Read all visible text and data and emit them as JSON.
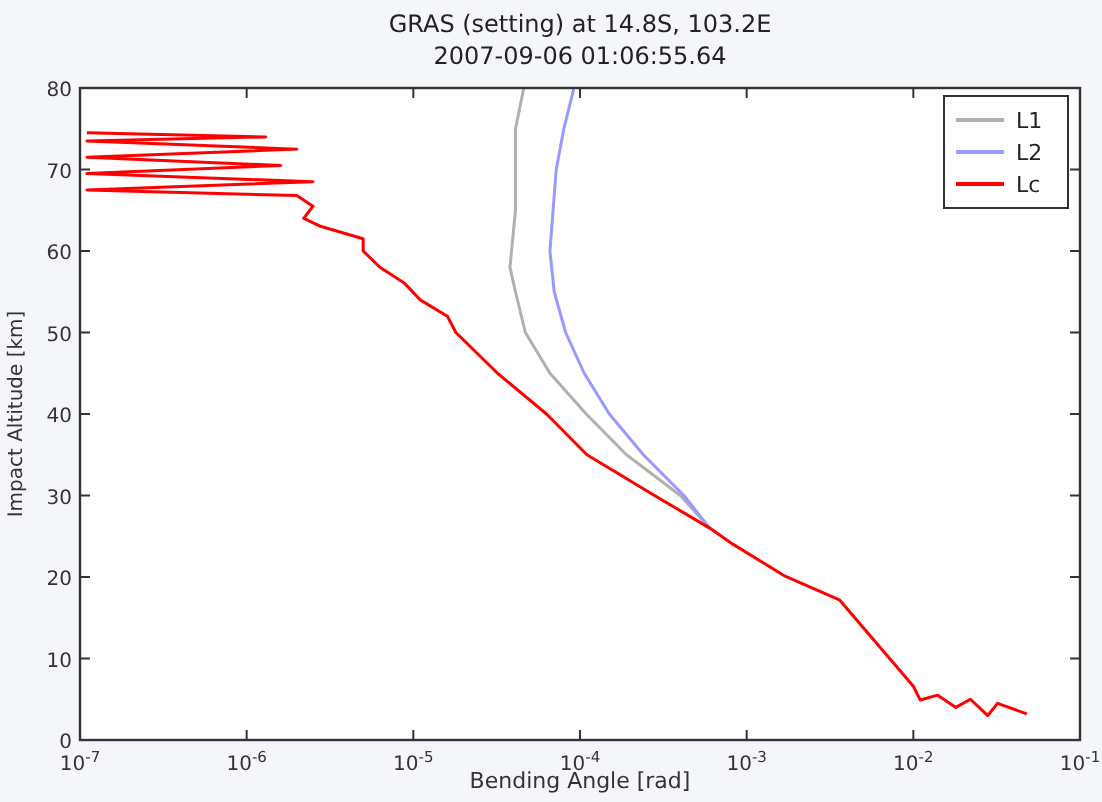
{
  "chart_data": {
    "type": "line",
    "title": "GRAS (setting) at 14.8S, 103.2E",
    "subtitle": "2007-09-06 01:06:55.64",
    "xlabel": "Bending Angle [rad]",
    "ylabel": "Impact Altitude [km]",
    "log": "x",
    "xlim": [
      1e-07,
      0.1
    ],
    "ylim": [
      0,
      80
    ],
    "xticks": [
      {
        "value": 1e-07,
        "label": "10$^{-7}$"
      },
      {
        "value": 1e-06,
        "label": "10$^{-6}$"
      },
      {
        "value": 1e-05,
        "label": "10$^{-5}$"
      },
      {
        "value": 0.0001,
        "label": "10$^{-4}$"
      },
      {
        "value": 0.001,
        "label": "10$^{-3}$"
      },
      {
        "value": 0.01,
        "label": "10$^{-2}$"
      },
      {
        "value": 0.1,
        "label": "10$^{-1}$"
      }
    ],
    "yticks": [
      0,
      10,
      20,
      30,
      40,
      50,
      60,
      70,
      80
    ],
    "grid": false,
    "legend": "top right",
    "marker": "none",
    "line_style": "solid",
    "series": [
      {
        "name": "L1",
        "color": "#b0b0b0",
        "x": [
          4.6e-05,
          4.1e-05,
          4.1e-05,
          3.8e-05,
          4.1e-05,
          4.7e-05,
          6.6e-05,
          0.000109,
          0.00019,
          0.0004,
          0.0006
        ],
        "values": [
          80,
          75,
          65,
          58,
          55,
          50,
          45,
          40,
          35,
          30,
          26
        ]
      },
      {
        "name": "L2",
        "color": "#9999ff",
        "x": [
          9.2e-05,
          8e-05,
          7.2e-05,
          6.6e-05,
          7e-05,
          8.2e-05,
          0.000106,
          0.00015,
          0.00024,
          0.00042,
          0.0006
        ],
        "values": [
          80,
          75,
          70,
          60,
          55,
          50,
          45,
          40,
          35,
          30,
          26
        ]
      },
      {
        "name": "Lc",
        "color": "#ff0000",
        "x": [
          1.1e-07,
          1.3e-06,
          1.1e-07,
          2e-06,
          1.1e-07,
          1.6e-06,
          1.1e-07,
          2.5e-06,
          1.1e-07,
          2e-06,
          2.5e-06,
          2.2e-06,
          2.8e-06,
          5e-06,
          5e-06,
          6.3e-06,
          8.9e-06,
          1.1e-05,
          1.6e-05,
          1.8e-05,
          3.2e-05,
          6.3e-05,
          0.00011,
          0.00028,
          0.0006,
          0.00083,
          0.0017,
          0.0036,
          0.01,
          0.011,
          0.014,
          0.018,
          0.022,
          0.028,
          0.032,
          0.048
        ],
        "values": [
          74.5,
          74,
          73.5,
          72.5,
          71.5,
          70.5,
          69.5,
          68.5,
          67.5,
          66.8,
          65.5,
          64,
          63,
          61.5,
          60,
          58,
          56,
          54,
          52,
          50,
          45,
          40,
          35,
          30,
          26,
          24,
          20.1,
          17.2,
          6.6,
          4.9,
          5.5,
          4,
          5,
          3,
          4.5,
          3.2
        ]
      }
    ]
  }
}
